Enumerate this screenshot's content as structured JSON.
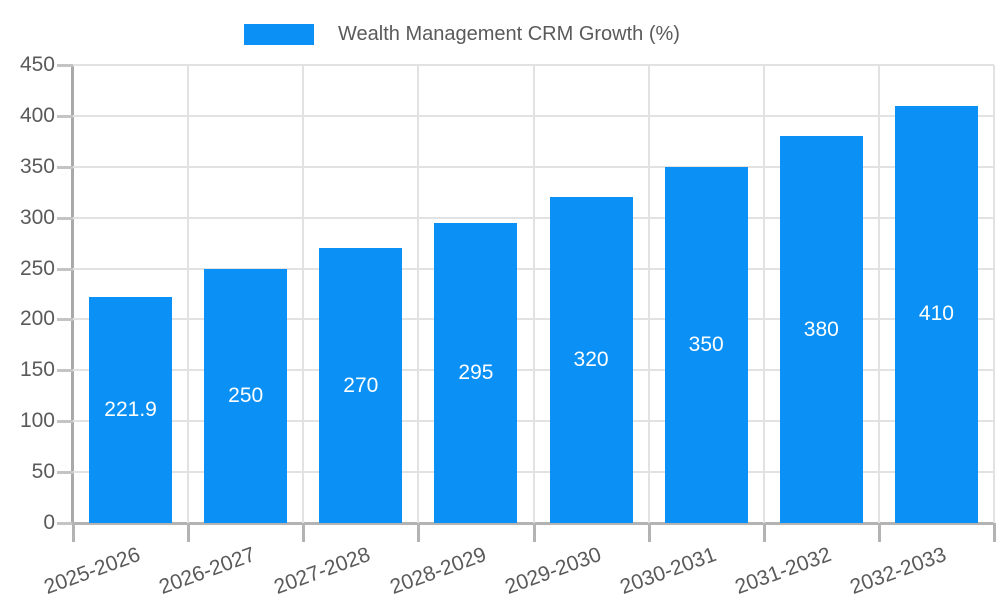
{
  "legend": {
    "label": "Wealth Management CRM Growth (%)",
    "swatch_color": "#0b90f5"
  },
  "chart_data": {
    "type": "bar",
    "title": "Wealth Management CRM Growth (%)",
    "categories": [
      "2025-2026",
      "2026-2027",
      "2027-2028",
      "2028-2029",
      "2029-2030",
      "2030-2031",
      "2031-2032",
      "2032-2033"
    ],
    "values": [
      221.9,
      250,
      270,
      295,
      320,
      350,
      380,
      410
    ],
    "value_labels": [
      "221.9",
      "250",
      "270",
      "295",
      "320",
      "350",
      "380",
      "410"
    ],
    "series": [
      {
        "name": "Wealth Management CRM Growth (%)",
        "values": [
          221.9,
          250,
          270,
          295,
          320,
          350,
          380,
          410
        ]
      }
    ],
    "xlabel": "",
    "ylabel": "",
    "ylim": [
      0,
      450
    ],
    "ytick_step": 50,
    "ytick_labels": [
      "0",
      "50",
      "100",
      "150",
      "200",
      "250",
      "300",
      "350",
      "400",
      "450"
    ],
    "grid": true,
    "legend_position": "top",
    "bar_color": "#0b90f5",
    "value_label_color": "#ffffff",
    "tick_label_color": "#5a5a5a",
    "x_label_rotation_deg": -20
  }
}
